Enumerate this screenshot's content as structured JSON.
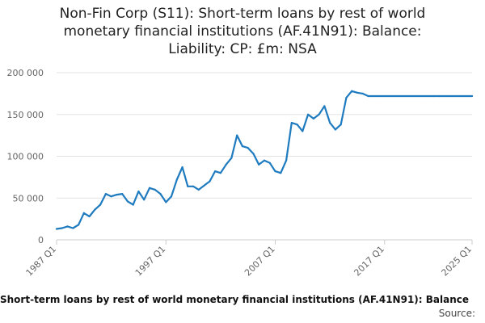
{
  "title_lines": [
    "Non-Fin Corp (S11): Short-term loans by rest of world",
    "monetary financial institutions (AF.41N91): Balance:",
    "Liability: CP: £m: NSA"
  ],
  "footer": {
    "series_label": "Short-term loans by rest of world monetary financial institutions (AF.41N91): Balance",
    "source_label": "Source:"
  },
  "colors": {
    "line": "#1f7bbf",
    "grid": "#e3e3e3",
    "axis": "#cccccc"
  },
  "chart_data": {
    "type": "line",
    "title": "Non-Fin Corp (S11): Short-term loans by rest of world monetary financial institutions (AF.41N91): Balance: Liability: CP: £m: NSA",
    "ylim": [
      0,
      200000
    ],
    "yticks": [
      0,
      50000,
      100000,
      150000,
      200000
    ],
    "ytick_labels": [
      "0",
      "50 000",
      "100 000",
      "150 000",
      "200 000"
    ],
    "xlim": [
      1987.0,
      2025.0
    ],
    "xticks": [
      1987.0,
      1997.0,
      2007.0,
      2017.0,
      2025.0
    ],
    "xtick_labels": [
      "1987 Q1",
      "1997 Q1",
      "2007 Q1",
      "2017 Q1",
      "2025 Q1"
    ],
    "grid": true,
    "x": [
      1987.0,
      1987.5,
      1988.0,
      1988.5,
      1989.0,
      1989.5,
      1990.0,
      1990.5,
      1991.0,
      1991.5,
      1992.0,
      1992.5,
      1993.0,
      1993.5,
      1994.0,
      1994.5,
      1995.0,
      1995.5,
      1996.0,
      1996.5,
      1997.0,
      1997.5,
      1998.0,
      1998.5,
      1999.0,
      1999.5,
      2000.0,
      2000.5,
      2001.0,
      2001.5,
      2002.0,
      2002.5,
      2003.0,
      2003.5,
      2004.0,
      2004.5,
      2005.0,
      2005.5,
      2006.0,
      2006.5,
      2007.0,
      2007.5,
      2008.0,
      2008.5,
      2009.0,
      2009.5,
      2010.0,
      2010.5,
      2011.0,
      2011.5,
      2012.0,
      2012.5,
      2013.0,
      2013.5,
      2014.0,
      2014.5,
      2015.0,
      2015.5,
      2016.0,
      2016.5,
      2017.0,
      2017.5,
      2018.0,
      2018.5,
      2019.0,
      2019.5,
      2020.0,
      2020.5,
      2021.0,
      2021.5,
      2022.0,
      2022.5,
      2023.0,
      2023.5,
      2024.0,
      2024.5,
      2025.0
    ],
    "series": [
      {
        "values": [
          13000,
          14000,
          16000,
          14000,
          18000,
          32000,
          28000,
          36000,
          42000,
          55000,
          52000,
          54000,
          55000,
          46000,
          42000,
          58000,
          48000,
          62000,
          60000,
          55000,
          45000,
          52000,
          72000,
          87000,
          64000,
          64000,
          60000,
          65000,
          70000,
          82000,
          80000,
          90000,
          98000,
          125000,
          112000,
          110000,
          103000,
          90000,
          95000,
          92000,
          82000,
          80000,
          95000,
          140000,
          138000,
          130000,
          150000,
          145000,
          150000,
          160000,
          140000,
          132000,
          138000,
          170000,
          178000,
          176000,
          175000,
          172000,
          172000,
          172000,
          172000,
          172000,
          172000,
          172000,
          172000,
          172000,
          172000,
          172000,
          172000,
          172000,
          172000,
          172000,
          172000,
          172000,
          172000,
          172000,
          172000
        ]
      }
    ]
  }
}
